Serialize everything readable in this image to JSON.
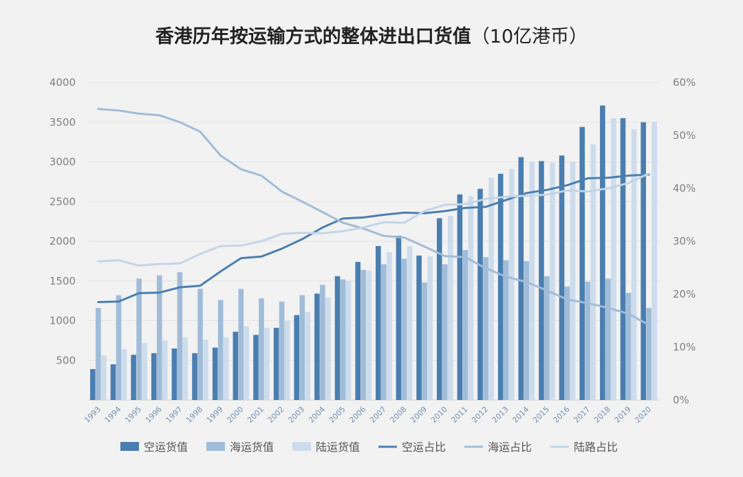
{
  "chart_data": {
    "type": "bar",
    "title": "香港历年按运输方式的整体进出口货值",
    "title_unit": "（10亿港币）",
    "categories": [
      "1993",
      "1994",
      "1995",
      "1996",
      "1997",
      "1998",
      "1999",
      "2000",
      "2001",
      "2002",
      "2003",
      "2004",
      "2005",
      "2006",
      "2007",
      "2008",
      "2009",
      "2010",
      "2011",
      "2012",
      "2013",
      "2014",
      "2015",
      "2016",
      "2017",
      "2018",
      "2019",
      "2020"
    ],
    "y_left": {
      "ticks": [
        "500",
        "1000",
        "1500",
        "2000",
        "2500",
        "3000",
        "3500",
        "4000"
      ],
      "ylim": [
        0,
        4000
      ]
    },
    "y_right": {
      "ticks": [
        "0%",
        "10%",
        "20%",
        "30%",
        "40%",
        "50%",
        "60%"
      ],
      "ylim": [
        0,
        60
      ]
    },
    "grid": true,
    "legend_position": "bottom",
    "bar_series": [
      {
        "name": "空运货值",
        "color": "#4a7eb0",
        "values": [
          390,
          450,
          570,
          590,
          650,
          590,
          660,
          860,
          820,
          910,
          1070,
          1340,
          1560,
          1740,
          1940,
          2070,
          1820,
          2290,
          2590,
          2660,
          2850,
          3060,
          3010,
          3080,
          3440,
          3710,
          3550,
          3500
        ]
      },
      {
        "name": "海运货值",
        "color": "#a0bcd8",
        "values": [
          1160,
          1320,
          1530,
          1570,
          1610,
          1400,
          1260,
          1400,
          1280,
          1240,
          1320,
          1450,
          1520,
          1640,
          1710,
          1780,
          1480,
          1710,
          1890,
          1800,
          1760,
          1750,
          1560,
          1430,
          1490,
          1530,
          1350,
          1160
        ]
      },
      {
        "name": "陆运货值",
        "color": "#cddcec",
        "values": [
          560,
          640,
          720,
          750,
          790,
          760,
          790,
          930,
          910,
          1000,
          1110,
          1290,
          1500,
          1630,
          1860,
          1940,
          1810,
          2320,
          2570,
          2800,
          2910,
          3000,
          2990,
          3000,
          3220,
          3550,
          3410,
          3500
        ]
      }
    ],
    "line_series": [
      {
        "name": "空运占比",
        "color": "#4a7eb0",
        "values": [
          18.5,
          18.6,
          20.2,
          20.3,
          21.3,
          21.6,
          24.3,
          26.8,
          27.1,
          28.6,
          30.4,
          32.6,
          34.3,
          34.5,
          35.0,
          35.4,
          35.3,
          35.7,
          36.3,
          36.5,
          37.8,
          39.1,
          39.7,
          40.6,
          41.9,
          42.0,
          42.4,
          42.6
        ]
      },
      {
        "name": "海运占比",
        "color": "#a0bcd8",
        "values": [
          55.0,
          54.7,
          54.1,
          53.8,
          52.5,
          50.7,
          46.2,
          43.6,
          42.4,
          39.4,
          37.5,
          35.5,
          33.5,
          32.4,
          31.0,
          30.7,
          29.0,
          27.2,
          27.0,
          24.9,
          23.3,
          22.3,
          20.7,
          19.0,
          18.3,
          17.4,
          16.3,
          14.2
        ]
      },
      {
        "name": "陆路占比",
        "color": "#c3d5e8",
        "values": [
          26.2,
          26.4,
          25.4,
          25.7,
          25.8,
          27.6,
          29.1,
          29.2,
          30.0,
          31.4,
          31.6,
          31.5,
          31.9,
          32.6,
          33.6,
          33.5,
          35.7,
          36.9,
          37.0,
          38.0,
          38.4,
          38.6,
          38.8,
          39.6,
          39.4,
          40.0,
          41.0,
          42.8
        ]
      }
    ]
  }
}
